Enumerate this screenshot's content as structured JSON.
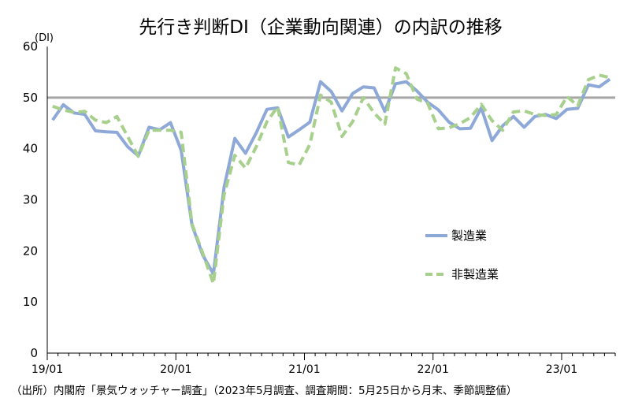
{
  "chart_data": {
    "type": "line",
    "title": "先行き判断DI（企業動向関連）の内訳の推移",
    "ylabel": "(DI)",
    "xlabel": "",
    "ylim": [
      0,
      60
    ],
    "yticks": [
      0,
      10,
      20,
      30,
      40,
      50,
      60
    ],
    "xtick_labels": [
      {
        "label": "19/01",
        "index": 0
      },
      {
        "label": "20/01",
        "index": 12
      },
      {
        "label": "21/01",
        "index": 24
      },
      {
        "label": "22/01",
        "index": 36
      },
      {
        "label": "23/01",
        "index": 48
      }
    ],
    "reference_line": 50,
    "legend_position": "right",
    "series": [
      {
        "name": "製造業",
        "color": "#8EA9D8",
        "dash": "solid",
        "values": [
          45.6,
          48.6,
          47.0,
          46.7,
          43.5,
          43.3,
          43.2,
          40.4,
          38.6,
          44.2,
          43.7,
          45.1,
          39.7,
          25.1,
          19.2,
          15.5,
          32.5,
          42.0,
          39.1,
          43.1,
          47.7,
          48.0,
          42.3,
          43.7,
          45.2,
          53.1,
          51.2,
          47.4,
          50.8,
          52.1,
          51.9,
          47.3,
          52.7,
          53.1,
          51.3,
          49.1,
          47.6,
          45.2,
          43.9,
          44.0,
          48.0,
          41.6,
          44.5,
          46.3,
          44.2,
          46.3,
          46.7,
          45.9,
          47.7,
          47.9,
          52.5,
          52.1,
          53.6
        ]
      },
      {
        "name": "非製造業",
        "color": "#A8D08D",
        "dash": "dashed",
        "values": [
          48.3,
          47.6,
          47.1,
          47.3,
          45.6,
          45.1,
          46.3,
          42.4,
          38.5,
          43.6,
          43.6,
          43.6,
          43.2,
          25.3,
          19.6,
          13.6,
          31.0,
          38.7,
          36.2,
          40.4,
          45.3,
          48.2,
          37.3,
          36.8,
          40.8,
          50.5,
          49.1,
          42.4,
          45.3,
          50.0,
          47.0,
          44.8,
          55.8,
          54.7,
          49.7,
          48.9,
          43.9,
          44.1,
          44.9,
          46.1,
          48.7,
          45.5,
          43.6,
          47.2,
          47.4,
          46.7,
          46.5,
          46.7,
          50.2,
          48.4,
          53.5,
          54.4,
          53.9
        ]
      }
    ]
  },
  "source_note": "（出所）内閣府「景気ウォッチャー調査」（2023年5月調査、調査期間：5月25日から月末、季節調整値）"
}
